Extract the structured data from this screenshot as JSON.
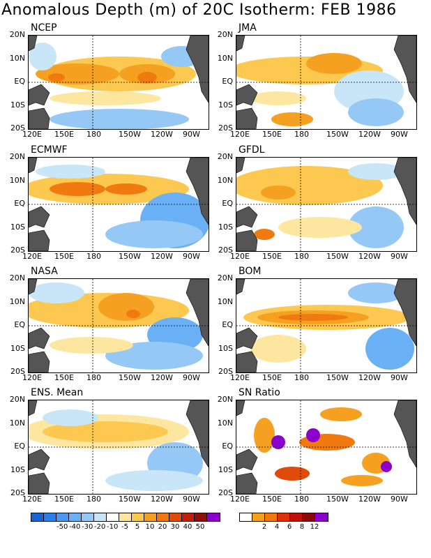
{
  "title": "Anomalous Depth (m) of 20C Isotherm: FEB 1986",
  "lat_labels": [
    "20N",
    "10N",
    "EQ",
    "10S",
    "20S"
  ],
  "lon_labels": [
    "120E",
    "150E",
    "180",
    "150W",
    "120W",
    "90W"
  ],
  "panels": [
    {
      "name": "NCEP"
    },
    {
      "name": "JMA"
    },
    {
      "name": "ECMWF"
    },
    {
      "name": "GFDL"
    },
    {
      "name": "NASA"
    },
    {
      "name": "BOM"
    },
    {
      "name": "ENS. Mean"
    },
    {
      "name": "SN Ratio"
    }
  ],
  "anomaly_legend": {
    "labels": [
      "-50",
      "-40",
      "-30",
      "-20",
      "-10",
      "-5",
      "5",
      "10",
      "20",
      "30",
      "40",
      "50"
    ],
    "colors": [
      "#1a64d2",
      "#2a80e6",
      "#4a98f0",
      "#6ab0f5",
      "#96c8f5",
      "#c8e6f8",
      "#ffffff",
      "#fde7a0",
      "#fcc850",
      "#f5a020",
      "#f07a10",
      "#e04a0a",
      "#c0200a",
      "#901008",
      "#8b00cc"
    ]
  },
  "snr_legend": {
    "labels": [
      "2",
      "4",
      "6",
      "8",
      "12"
    ],
    "colors": [
      "#ffffff",
      "#f5a020",
      "#f07a10",
      "#e0300a",
      "#c0100a",
      "#8b0808",
      "#8b00cc"
    ]
  }
}
